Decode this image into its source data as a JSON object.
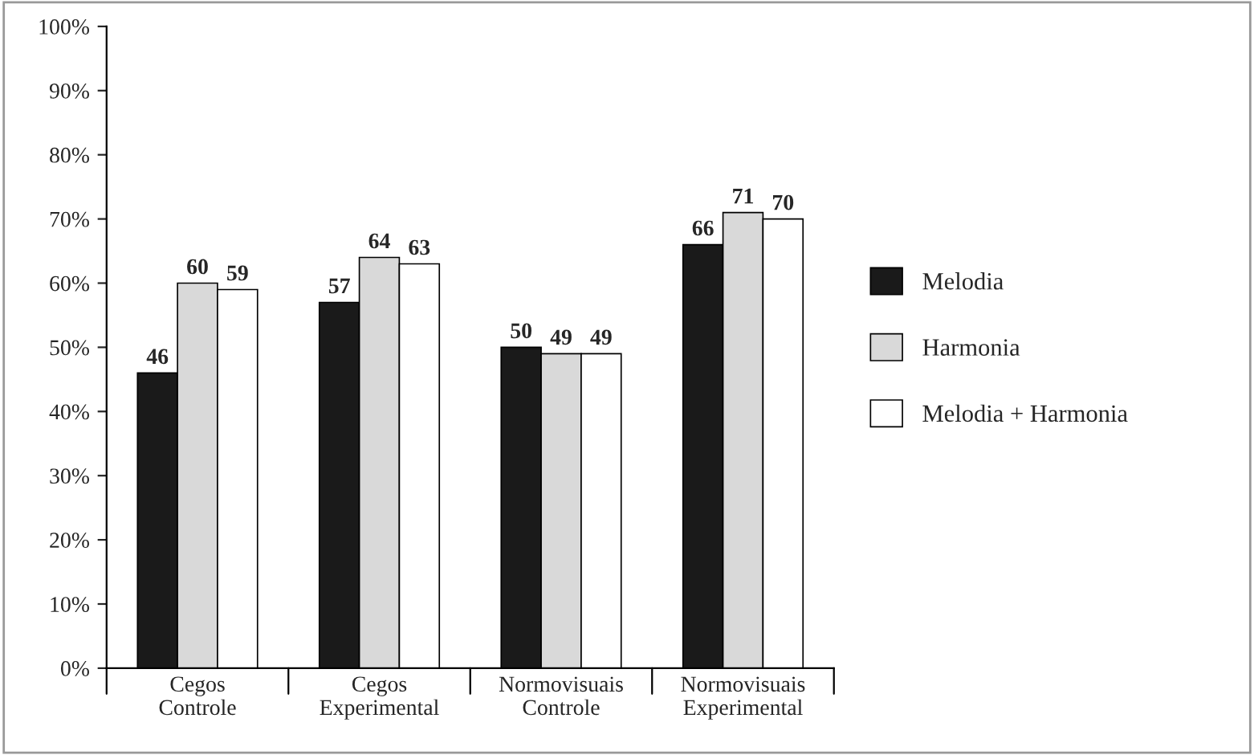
{
  "chart_data": {
    "type": "bar",
    "categories": [
      "Cegos\nControle",
      "Cegos\nExperimental",
      "Normovisuais\nControle",
      "Normovisuais\nExperimental"
    ],
    "series": [
      {
        "name": "Melodia",
        "color": "#1a1a1a",
        "values": [
          46,
          57,
          50,
          66
        ]
      },
      {
        "name": "Harmonia",
        "color": "#d9d9d9",
        "values": [
          60,
          64,
          49,
          71
        ]
      },
      {
        "name": "Melodia + Harmonia",
        "color": "#ffffff",
        "values": [
          59,
          63,
          49,
          70
        ]
      }
    ],
    "ylim": [
      0,
      100
    ],
    "yticks": [
      {
        "value": 0,
        "label": "0%"
      },
      {
        "value": 10,
        "label": "10%"
      },
      {
        "value": 20,
        "label": "20%"
      },
      {
        "value": 30,
        "label": "30%"
      },
      {
        "value": 40,
        "label": "40%"
      },
      {
        "value": 50,
        "label": "50%"
      },
      {
        "value": 60,
        "label": "60%"
      },
      {
        "value": 70,
        "label": "70%"
      },
      {
        "value": 80,
        "label": "80%"
      },
      {
        "value": 90,
        "label": "90%"
      },
      {
        "value": 100,
        "label": "100%"
      }
    ],
    "data_labels": true,
    "legend": "right",
    "grid": false
  }
}
